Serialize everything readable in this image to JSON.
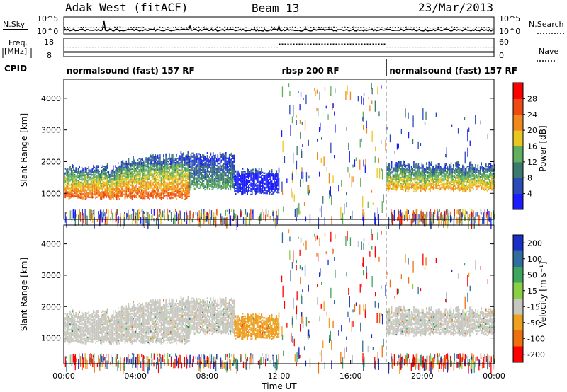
{
  "header": {
    "station": "Adak West (fitACF)",
    "beam": "Beam 13",
    "date": "23/Mar/2013"
  },
  "noise_panel": {
    "left_label": "N.Sky",
    "right_label": "N.Search",
    "left_ticks": [
      "10^5",
      "10^0"
    ],
    "right_ticks": [
      "10^5",
      "10^0"
    ]
  },
  "freq_panel": {
    "left_label_1": "Freq.",
    "left_label_2": "[MHz]",
    "right_label": "Nave",
    "left_ticks": [
      "18",
      "8"
    ],
    "right_ticks": [
      "60",
      "0"
    ],
    "freq_value_mhz": 10.5,
    "nave_day": 31,
    "nave_mid": 41
  },
  "cpid": {
    "label": "CPID",
    "segments": [
      {
        "name": "normalsound (fast) 157 RF",
        "start_h": 0,
        "end_h": 12
      },
      {
        "name": "rbsp 200 RF",
        "start_h": 12,
        "end_h": 18
      },
      {
        "name": "normalsound (fast) 157 RF",
        "start_h": 18,
        "end_h": 24
      }
    ]
  },
  "axes": {
    "ylabel": "Slant Range [km]",
    "xlabel": "Time UT",
    "yticks": [
      "1000",
      "2000",
      "3000",
      "4000"
    ],
    "xticks": [
      "00:00",
      "04:00",
      "08:00",
      "12:00",
      "16:00",
      "20:00",
      "00:00"
    ]
  },
  "power_scale": {
    "label": "Power [dB]",
    "ticks": [
      "4",
      "8",
      "12",
      "16",
      "20",
      "24",
      "28"
    ],
    "colors": [
      "#1c1cff",
      "#2a4ab8",
      "#3c7a6e",
      "#60b060",
      "#e8c820",
      "#f0881e",
      "#f04a14",
      "#ff0000"
    ]
  },
  "velocity_scale": {
    "label": "Velocity [m s⁻¹]",
    "ticks": [
      "200",
      "100",
      "50",
      "15",
      "-15",
      "-50",
      "-100",
      "-200"
    ],
    "colors": [
      "#1a2fc8",
      "#2f6e9e",
      "#3ea65e",
      "#8ad046",
      "#c8c8c0",
      "#f0a020",
      "#f07010",
      "#ff0000"
    ]
  },
  "chart_data": [
    {
      "type": "heatmap",
      "title": "Power",
      "xlabel": "Time UT",
      "ylabel": "Slant Range [km]",
      "xlim": [
        0,
        24
      ],
      "ylim": [
        180,
        4600
      ],
      "colorbar_label": "Power [dB]",
      "colorbar_range": [
        0,
        32
      ],
      "echo_bands": [
        {
          "start_h": 0,
          "end_h": 3,
          "range_low_km": 850,
          "range_high_km": 1900,
          "peak_power_db": 28
        },
        {
          "start_h": 3,
          "end_h": 7,
          "range_low_km": 850,
          "range_high_km": 2100,
          "peak_power_db": 28
        },
        {
          "start_h": 7,
          "end_h": 9.5,
          "range_low_km": 1150,
          "range_high_km": 2300,
          "peak_power_db": 16
        },
        {
          "start_h": 9.5,
          "end_h": 12,
          "range_low_km": 1000,
          "range_high_km": 1800,
          "peak_power_db": 6
        },
        {
          "start_h": 18,
          "end_h": 24,
          "range_low_km": 1100,
          "range_high_km": 2000,
          "peak_power_db": 24
        }
      ]
    },
    {
      "type": "heatmap",
      "title": "Velocity",
      "xlabel": "Time UT",
      "ylabel": "Slant Range [km]",
      "xlim": [
        0,
        24
      ],
      "ylim": [
        180,
        4600
      ],
      "colorbar_label": "Velocity [m s⁻¹]",
      "colorbar_range": [
        -250,
        250
      ],
      "echo_bands": [
        {
          "start_h": 0,
          "end_h": 9.5,
          "range_low_km": 850,
          "range_high_km": 2100,
          "dominant_velocity": 0
        },
        {
          "start_h": 9.5,
          "end_h": 12,
          "range_low_km": 1000,
          "range_high_km": 1800,
          "dominant_velocity": -40
        },
        {
          "start_h": 18,
          "end_h": 24,
          "range_low_km": 1100,
          "range_high_km": 2000,
          "dominant_velocity": 0
        }
      ]
    }
  ]
}
